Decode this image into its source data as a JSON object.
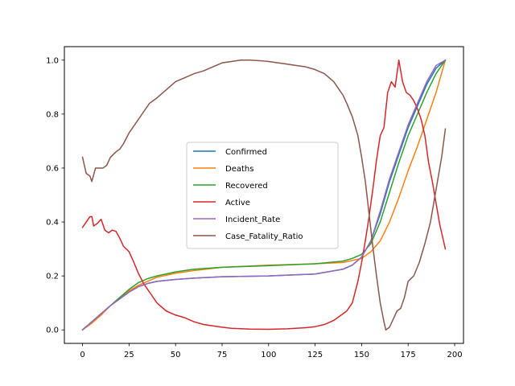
{
  "chart_data": {
    "type": "line",
    "title": "",
    "xlabel": "",
    "ylabel": "",
    "xlim": [
      -9.75,
      204.75
    ],
    "ylim": [
      -0.05,
      1.05
    ],
    "xticks": [
      0,
      25,
      50,
      75,
      100,
      125,
      150,
      175,
      200
    ],
    "yticks": [
      0.0,
      0.2,
      0.4,
      0.6,
      0.8,
      1.0
    ],
    "xtick_labels": [
      "0",
      "25",
      "50",
      "75",
      "100",
      "125",
      "150",
      "175",
      "200"
    ],
    "ytick_labels": [
      "0.0",
      "0.2",
      "0.4",
      "0.6",
      "0.8",
      "1.0"
    ],
    "grid": false,
    "legend_position": "center",
    "series": [
      {
        "name": "Confirmed",
        "color": "#1f77b4",
        "points": [
          [
            0,
            0.0
          ],
          [
            5,
            0.03
          ],
          [
            10,
            0.06
          ],
          [
            15,
            0.09
          ],
          [
            20,
            0.115
          ],
          [
            25,
            0.14
          ],
          [
            30,
            0.16
          ],
          [
            35,
            0.172
          ],
          [
            40,
            0.18
          ],
          [
            50,
            0.187
          ],
          [
            60,
            0.192
          ],
          [
            75,
            0.197
          ],
          [
            100,
            0.2
          ],
          [
            125,
            0.207
          ],
          [
            140,
            0.225
          ],
          [
            145,
            0.24
          ],
          [
            150,
            0.27
          ],
          [
            155,
            0.33
          ],
          [
            160,
            0.43
          ],
          [
            165,
            0.55
          ],
          [
            170,
            0.65
          ],
          [
            175,
            0.75
          ],
          [
            180,
            0.83
          ],
          [
            185,
            0.91
          ],
          [
            190,
            0.97
          ],
          [
            195,
            1.0
          ]
        ]
      },
      {
        "name": "Deaths",
        "color": "#ff7f0e",
        "points": [
          [
            0,
            0.0
          ],
          [
            5,
            0.025
          ],
          [
            10,
            0.055
          ],
          [
            15,
            0.09
          ],
          [
            20,
            0.12
          ],
          [
            25,
            0.145
          ],
          [
            30,
            0.165
          ],
          [
            35,
            0.18
          ],
          [
            40,
            0.195
          ],
          [
            50,
            0.21
          ],
          [
            60,
            0.22
          ],
          [
            75,
            0.232
          ],
          [
            100,
            0.24
          ],
          [
            125,
            0.245
          ],
          [
            140,
            0.25
          ],
          [
            150,
            0.265
          ],
          [
            155,
            0.29
          ],
          [
            160,
            0.33
          ],
          [
            165,
            0.4
          ],
          [
            170,
            0.49
          ],
          [
            175,
            0.59
          ],
          [
            180,
            0.68
          ],
          [
            185,
            0.78
          ],
          [
            190,
            0.88
          ],
          [
            195,
            1.0
          ]
        ]
      },
      {
        "name": "Recovered",
        "color": "#2ca02c",
        "points": [
          [
            0,
            0.0
          ],
          [
            5,
            0.03
          ],
          [
            10,
            0.06
          ],
          [
            15,
            0.09
          ],
          [
            20,
            0.12
          ],
          [
            25,
            0.15
          ],
          [
            30,
            0.175
          ],
          [
            35,
            0.19
          ],
          [
            40,
            0.2
          ],
          [
            50,
            0.215
          ],
          [
            60,
            0.225
          ],
          [
            75,
            0.232
          ],
          [
            100,
            0.238
          ],
          [
            125,
            0.245
          ],
          [
            140,
            0.255
          ],
          [
            145,
            0.265
          ],
          [
            150,
            0.28
          ],
          [
            155,
            0.32
          ],
          [
            160,
            0.4
          ],
          [
            165,
            0.51
          ],
          [
            170,
            0.62
          ],
          [
            175,
            0.72
          ],
          [
            180,
            0.8
          ],
          [
            185,
            0.88
          ],
          [
            190,
            0.95
          ],
          [
            195,
            1.0
          ]
        ]
      },
      {
        "name": "Active",
        "color": "#d62728",
        "points": [
          [
            0,
            0.38
          ],
          [
            2,
            0.4
          ],
          [
            4,
            0.42
          ],
          [
            5,
            0.42
          ],
          [
            6,
            0.385
          ],
          [
            8,
            0.395
          ],
          [
            10,
            0.41
          ],
          [
            12,
            0.37
          ],
          [
            14,
            0.36
          ],
          [
            16,
            0.37
          ],
          [
            18,
            0.365
          ],
          [
            20,
            0.34
          ],
          [
            22,
            0.31
          ],
          [
            25,
            0.29
          ],
          [
            27,
            0.26
          ],
          [
            30,
            0.21
          ],
          [
            33,
            0.17
          ],
          [
            36,
            0.14
          ],
          [
            40,
            0.1
          ],
          [
            45,
            0.07
          ],
          [
            50,
            0.055
          ],
          [
            55,
            0.045
          ],
          [
            60,
            0.03
          ],
          [
            65,
            0.02
          ],
          [
            70,
            0.015
          ],
          [
            75,
            0.01
          ],
          [
            80,
            0.006
          ],
          [
            90,
            0.003
          ],
          [
            100,
            0.002
          ],
          [
            110,
            0.004
          ],
          [
            120,
            0.008
          ],
          [
            125,
            0.012
          ],
          [
            130,
            0.02
          ],
          [
            135,
            0.035
          ],
          [
            140,
            0.06
          ],
          [
            142,
            0.07
          ],
          [
            145,
            0.1
          ],
          [
            148,
            0.18
          ],
          [
            150,
            0.25
          ],
          [
            152,
            0.33
          ],
          [
            154,
            0.42
          ],
          [
            156,
            0.52
          ],
          [
            158,
            0.63
          ],
          [
            160,
            0.72
          ],
          [
            162,
            0.75
          ],
          [
            164,
            0.88
          ],
          [
            166,
            0.92
          ],
          [
            168,
            0.9
          ],
          [
            170,
            1.0
          ],
          [
            172,
            0.92
          ],
          [
            174,
            0.88
          ],
          [
            176,
            0.87
          ],
          [
            178,
            0.85
          ],
          [
            180,
            0.82
          ],
          [
            182,
            0.78
          ],
          [
            184,
            0.72
          ],
          [
            186,
            0.62
          ],
          [
            188,
            0.55
          ],
          [
            190,
            0.47
          ],
          [
            192,
            0.39
          ],
          [
            195,
            0.3
          ]
        ]
      },
      {
        "name": "Incident_Rate",
        "color": "#9467bd",
        "points": [
          [
            0,
            0.0
          ],
          [
            5,
            0.03
          ],
          [
            10,
            0.06
          ],
          [
            15,
            0.09
          ],
          [
            20,
            0.115
          ],
          [
            25,
            0.14
          ],
          [
            30,
            0.16
          ],
          [
            35,
            0.172
          ],
          [
            40,
            0.18
          ],
          [
            50,
            0.187
          ],
          [
            60,
            0.192
          ],
          [
            75,
            0.197
          ],
          [
            100,
            0.2
          ],
          [
            125,
            0.207
          ],
          [
            140,
            0.225
          ],
          [
            145,
            0.24
          ],
          [
            150,
            0.27
          ],
          [
            155,
            0.33
          ],
          [
            160,
            0.44
          ],
          [
            165,
            0.56
          ],
          [
            170,
            0.66
          ],
          [
            175,
            0.76
          ],
          [
            180,
            0.84
          ],
          [
            185,
            0.92
          ],
          [
            190,
            0.98
          ],
          [
            195,
            1.0
          ]
        ]
      },
      {
        "name": "Case_Fatality_Ratio",
        "color": "#8c564b",
        "points": [
          [
            0,
            0.64
          ],
          [
            2,
            0.58
          ],
          [
            4,
            0.57
          ],
          [
            5,
            0.55
          ],
          [
            7,
            0.6
          ],
          [
            9,
            0.6
          ],
          [
            11,
            0.6
          ],
          [
            13,
            0.61
          ],
          [
            15,
            0.64
          ],
          [
            18,
            0.66
          ],
          [
            20,
            0.67
          ],
          [
            22,
            0.69
          ],
          [
            25,
            0.73
          ],
          [
            28,
            0.76
          ],
          [
            30,
            0.78
          ],
          [
            33,
            0.81
          ],
          [
            36,
            0.84
          ],
          [
            40,
            0.86
          ],
          [
            45,
            0.89
          ],
          [
            50,
            0.92
          ],
          [
            55,
            0.935
          ],
          [
            60,
            0.95
          ],
          [
            65,
            0.96
          ],
          [
            70,
            0.975
          ],
          [
            75,
            0.99
          ],
          [
            80,
            0.995
          ],
          [
            85,
            1.0
          ],
          [
            90,
            1.0
          ],
          [
            95,
            0.998
          ],
          [
            100,
            0.995
          ],
          [
            105,
            0.99
          ],
          [
            110,
            0.985
          ],
          [
            115,
            0.98
          ],
          [
            120,
            0.975
          ],
          [
            125,
            0.965
          ],
          [
            130,
            0.95
          ],
          [
            135,
            0.92
          ],
          [
            138,
            0.89
          ],
          [
            140,
            0.87
          ],
          [
            142,
            0.84
          ],
          [
            145,
            0.79
          ],
          [
            148,
            0.72
          ],
          [
            150,
            0.64
          ],
          [
            152,
            0.55
          ],
          [
            154,
            0.43
          ],
          [
            156,
            0.31
          ],
          [
            158,
            0.2
          ],
          [
            160,
            0.1
          ],
          [
            162,
            0.03
          ],
          [
            163,
            0.0
          ],
          [
            165,
            0.01
          ],
          [
            167,
            0.04
          ],
          [
            169,
            0.07
          ],
          [
            171,
            0.08
          ],
          [
            173,
            0.12
          ],
          [
            175,
            0.18
          ],
          [
            178,
            0.2
          ],
          [
            181,
            0.25
          ],
          [
            184,
            0.32
          ],
          [
            187,
            0.4
          ],
          [
            190,
            0.52
          ],
          [
            193,
            0.64
          ],
          [
            195,
            0.745
          ]
        ]
      }
    ]
  }
}
